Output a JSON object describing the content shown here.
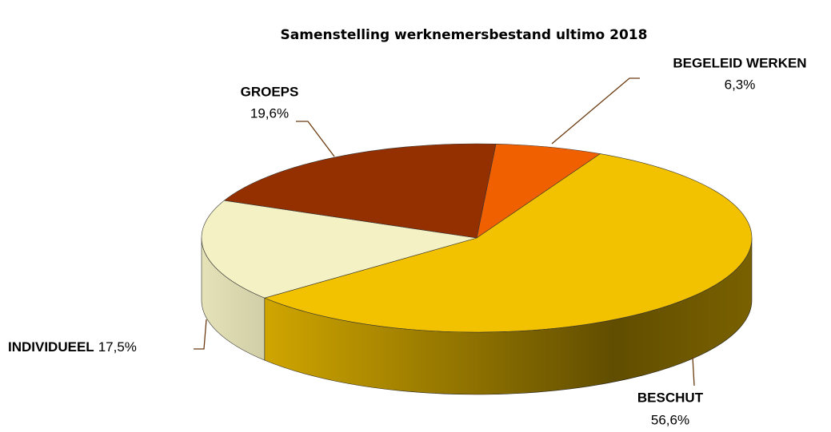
{
  "chart_data": {
    "type": "pie",
    "title": "Samenstelling werknemersbestand ultimo 2018",
    "categories": [
      "BEGELEID WERKEN",
      "BESCHUT",
      "INDIVIDUEEL",
      "GROEPS"
    ],
    "values": [
      6.3,
      56.6,
      17.5,
      19.6
    ],
    "value_labels": [
      "6,3%",
      "56,6%",
      "17,5%",
      "19,6%"
    ],
    "colors": [
      "#f06000",
      "#f2c100",
      "#f4f1c4",
      "#943000"
    ]
  }
}
